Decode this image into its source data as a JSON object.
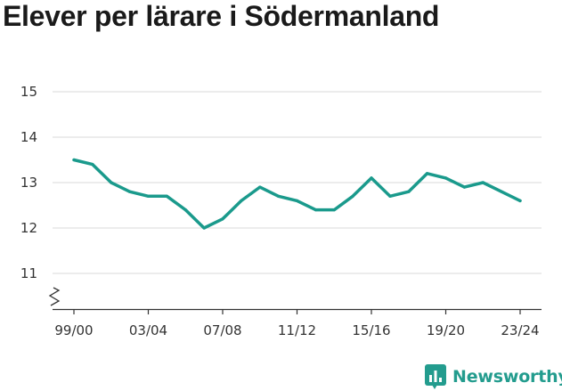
{
  "title": "Elever per lärare i Södermanland",
  "brand": {
    "name": "Newsworthy",
    "icon": "newsworthy-logo-icon",
    "color": "#239c8e"
  },
  "chart_data": {
    "type": "line",
    "title": "Elever per lärare i Södermanland",
    "xlabel": "",
    "ylabel": "",
    "ylim": [
      10.2,
      15
    ],
    "y_axis_break": true,
    "grid": true,
    "yticks": [
      11,
      12,
      13,
      14,
      15
    ],
    "xticks": [
      "99/00",
      "03/04",
      "07/08",
      "11/12",
      "15/16",
      "19/20",
      "23/24"
    ],
    "line_color": "#1a9a8c",
    "x": [
      "99/00",
      "00/01",
      "01/02",
      "02/03",
      "03/04",
      "04/05",
      "05/06",
      "06/07",
      "07/08",
      "08/09",
      "09/10",
      "10/11",
      "11/12",
      "12/13",
      "13/14",
      "14/15",
      "15/16",
      "16/17",
      "17/18",
      "18/19",
      "19/20",
      "20/21",
      "21/22",
      "22/23",
      "23/24"
    ],
    "series": [
      {
        "values": [
          13.5,
          13.4,
          13.0,
          12.8,
          12.7,
          12.7,
          12.4,
          12.0,
          12.2,
          12.6,
          12.9,
          12.7,
          12.6,
          12.4,
          12.4,
          12.7,
          13.1,
          12.7,
          12.8,
          13.2,
          13.1,
          12.9,
          13.0,
          12.8,
          12.6
        ]
      }
    ]
  }
}
